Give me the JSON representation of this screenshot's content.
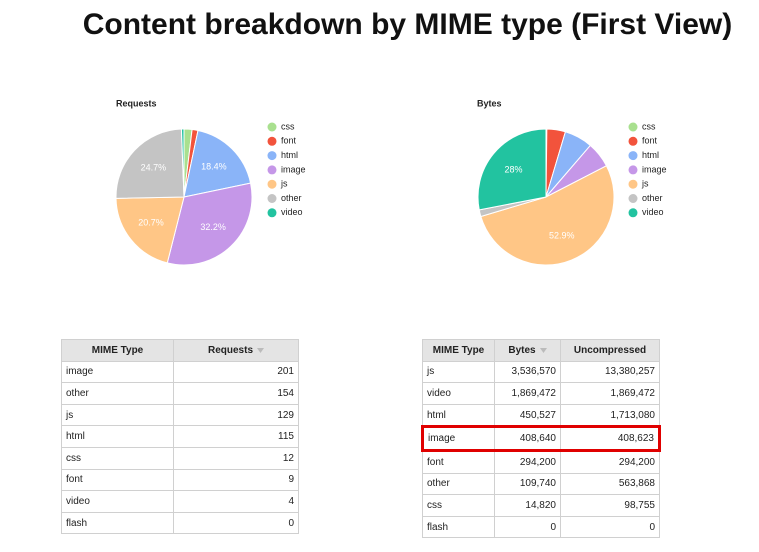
{
  "title": "Content breakdown by MIME type (First View)",
  "chart_data": [
    {
      "type": "pie",
      "title": "Requests",
      "categories": [
        "css",
        "font",
        "html",
        "image",
        "js",
        "other",
        "video"
      ],
      "values": [
        1.9,
        1.4,
        18.4,
        32.2,
        20.7,
        24.7,
        0.6
      ],
      "value_labels": [
        null,
        null,
        "18.4%",
        "32.2%",
        "20.7%",
        "24.7%",
        null
      ],
      "colors": [
        "#a9e08f",
        "#f2533c",
        "#8ab4f8",
        "#c597e8",
        "#ffc686",
        "#c4c4c4",
        "#22c3a0"
      ],
      "legend": "right"
    },
    {
      "type": "pie",
      "title": "Bytes",
      "categories": [
        "css",
        "font",
        "html",
        "image",
        "js",
        "other",
        "video"
      ],
      "values": [
        0.2,
        4.4,
        6.7,
        6.1,
        52.9,
        1.6,
        28.0
      ],
      "value_labels": [
        null,
        null,
        null,
        null,
        "52.9%",
        null,
        "28%"
      ],
      "colors": [
        "#a9e08f",
        "#f2533c",
        "#8ab4f8",
        "#c597e8",
        "#ffc686",
        "#c4c4c4",
        "#22c3a0"
      ],
      "legend": "right"
    }
  ],
  "tables": [
    {
      "header": [
        "MIME Type",
        "Requests"
      ],
      "rows": [
        [
          "image",
          "201"
        ],
        [
          "other",
          "154"
        ],
        [
          "js",
          "129"
        ],
        [
          "html",
          "115"
        ],
        [
          "css",
          "12"
        ],
        [
          "font",
          "9"
        ],
        [
          "video",
          "4"
        ],
        [
          "flash",
          "0"
        ]
      ]
    },
    {
      "header": [
        "MIME Type",
        "Bytes",
        "Uncompressed"
      ],
      "rows": [
        [
          "js",
          "3,536,570",
          "13,380,257"
        ],
        [
          "video",
          "1,869,472",
          "1,869,472"
        ],
        [
          "html",
          "450,527",
          "1,713,080"
        ],
        [
          "image",
          "408,640",
          "408,623"
        ],
        [
          "font",
          "294,200",
          "294,200"
        ],
        [
          "other",
          "109,740",
          "563,868"
        ],
        [
          "css",
          "14,820",
          "98,755"
        ],
        [
          "flash",
          "0",
          "0"
        ]
      ]
    }
  ]
}
